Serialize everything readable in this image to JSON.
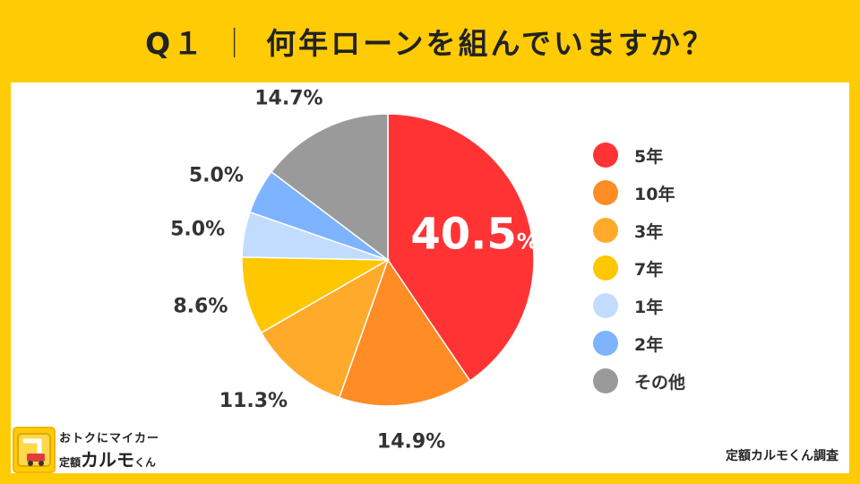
{
  "title": {
    "prefix": "Q１",
    "divider": "｜",
    "question": "何年ローンを組んでいますか？"
  },
  "chart_data": {
    "type": "pie",
    "slices": [
      {
        "label": "5年",
        "value": 40.5,
        "display": "40.5",
        "unit": "%",
        "color": "#FF3333"
      },
      {
        "label": "10年",
        "value": 14.9,
        "display": "14.9%",
        "color": "#FF8C24"
      },
      {
        "label": "3年",
        "value": 11.3,
        "display": "11.3%",
        "color": "#FFAA2B"
      },
      {
        "label": "7年",
        "value": 8.6,
        "display": "8.6%",
        "color": "#FFC700"
      },
      {
        "label": "1年",
        "value": 5.0,
        "display": "5.0%",
        "color": "#C2DCFF"
      },
      {
        "label": "2年",
        "value": 5.0,
        "display": "5.0%",
        "color": "#7DB3FF"
      },
      {
        "label": "その他",
        "value": 14.7,
        "display": "14.7%",
        "color": "#9A9A9A"
      }
    ],
    "start_angle": "top",
    "direction": "clockwise",
    "legend_position": "right"
  },
  "logo": {
    "tagline": "おトクにマイカー",
    "brand_prefix": "定額",
    "brand_name": "カルモ",
    "brand_suffix": "くん"
  },
  "credit": "定額カルモくん調査"
}
